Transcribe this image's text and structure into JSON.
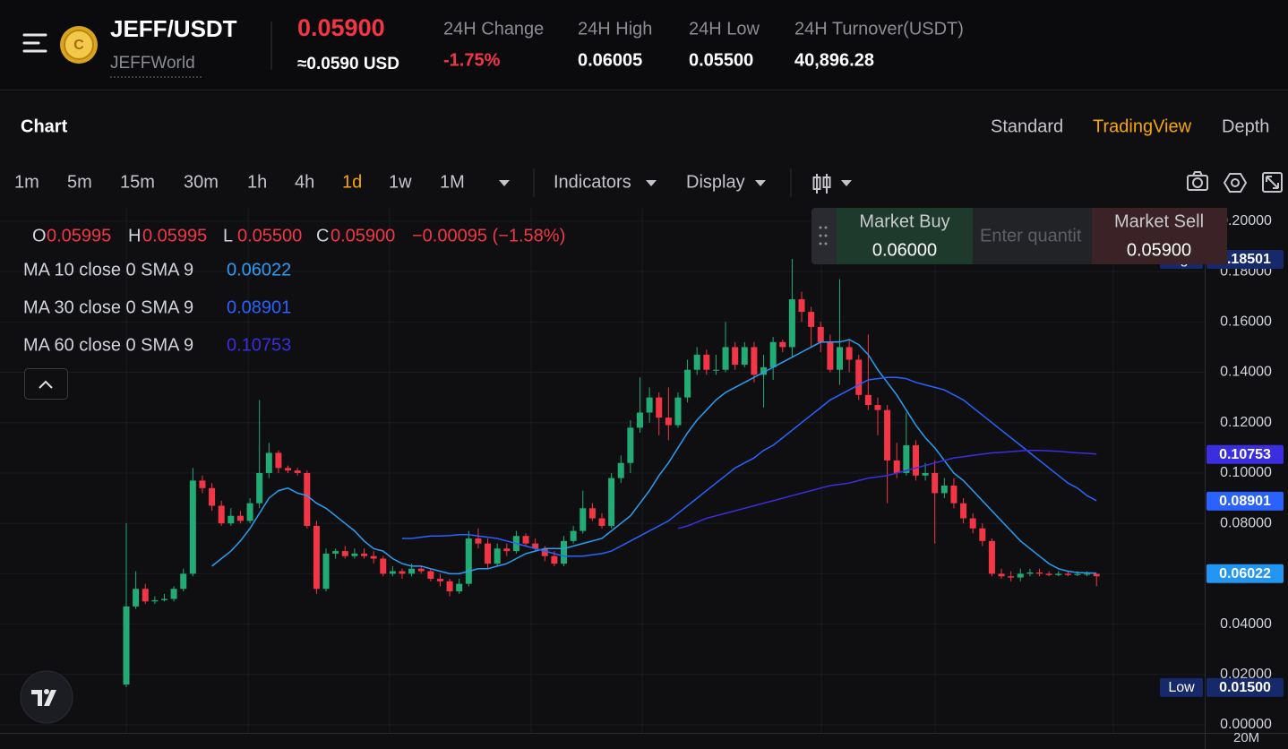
{
  "header": {
    "pair": "JEFF/USDT",
    "project": "JEFFWorld",
    "price": "0.05900",
    "price_usd": "≈0.0590 USD",
    "stats": [
      {
        "label": "24H Change",
        "value": "-1.75%",
        "color": "#f23645"
      },
      {
        "label": "24H High",
        "value": "0.06005"
      },
      {
        "label": "24H Low",
        "value": "0.05500"
      },
      {
        "label": "24H Turnover(USDT)",
        "value": "40,896.28"
      }
    ]
  },
  "tabs": {
    "title": "Chart",
    "views": [
      "Standard",
      "TradingView",
      "Depth"
    ],
    "active_view": "TradingView"
  },
  "toolbar": {
    "intervals": [
      "1m",
      "5m",
      "15m",
      "30m",
      "1h",
      "4h",
      "1d",
      "1w",
      "1M"
    ],
    "active_interval": "1d",
    "menus": [
      "Indicators",
      "Display"
    ]
  },
  "trade_panel": {
    "buy_label": "Market Buy",
    "buy_price": "0.06000",
    "placeholder": "Enter quantit",
    "sell_label": "Market Sell",
    "sell_price": "0.05900"
  },
  "chart_data": {
    "type": "candlestick",
    "up_color": "#22ab74",
    "down_color": "#f23645",
    "ylim": [
      -0.0032,
      0.2053
    ],
    "yticks": [
      {
        "value": 0,
        "label": "0.00000"
      },
      {
        "value": 0.02,
        "label": "0.02000"
      },
      {
        "value": 0.04,
        "label": "0.04000"
      },
      {
        "value": 0.06,
        "label": "0.06000"
      },
      {
        "value": 0.08,
        "label": "0.08000"
      },
      {
        "value": 0.1,
        "label": "0.10000"
      },
      {
        "value": 0.12,
        "label": "0.12000"
      },
      {
        "value": 0.14,
        "label": "0.14000"
      },
      {
        "value": 0.16,
        "label": "0.16000"
      },
      {
        "value": 0.18,
        "label": "0.18000"
      },
      {
        "value": 0.2,
        "label": "0.20000"
      }
    ],
    "grid": true,
    "legend_ohlc": [
      {
        "key": "O",
        "value": "0.05995"
      },
      {
        "key": "H",
        "value": "0.05995"
      },
      {
        "key": "L",
        "value": "0.05500"
      },
      {
        "key": "C",
        "value": "0.05900"
      }
    ],
    "legend_change": "−0.00095 (−1.58%)",
    "volume_label": "20M",
    "ohlc": [
      [
        0.016,
        0.08,
        0.015,
        0.047
      ],
      [
        0.047,
        0.061,
        0.046,
        0.054
      ],
      [
        0.054,
        0.056,
        0.048,
        0.049
      ],
      [
        0.049,
        0.051,
        0.048,
        0.0495
      ],
      [
        0.0495,
        0.052,
        0.049,
        0.05
      ],
      [
        0.05,
        0.055,
        0.049,
        0.054
      ],
      [
        0.054,
        0.062,
        0.053,
        0.06
      ],
      [
        0.06,
        0.102,
        0.059,
        0.097
      ],
      [
        0.097,
        0.099,
        0.092,
        0.094
      ],
      [
        0.094,
        0.096,
        0.085,
        0.087
      ],
      [
        0.087,
        0.089,
        0.079,
        0.08
      ],
      [
        0.08,
        0.086,
        0.079,
        0.083
      ],
      [
        0.083,
        0.085,
        0.08,
        0.081
      ],
      [
        0.081,
        0.09,
        0.08,
        0.088
      ],
      [
        0.088,
        0.129,
        0.086,
        0.1
      ],
      [
        0.1,
        0.112,
        0.098,
        0.108
      ],
      [
        0.108,
        0.109,
        0.1,
        0.102
      ],
      [
        0.102,
        0.103,
        0.1,
        0.101
      ],
      [
        0.101,
        0.102,
        0.099,
        0.1
      ],
      [
        0.1,
        0.101,
        0.078,
        0.079
      ],
      [
        0.079,
        0.081,
        0.052,
        0.054
      ],
      [
        0.054,
        0.07,
        0.053,
        0.068
      ],
      [
        0.068,
        0.07,
        0.066,
        0.069
      ],
      [
        0.069,
        0.071,
        0.066,
        0.067
      ],
      [
        0.067,
        0.07,
        0.066,
        0.068
      ],
      [
        0.068,
        0.07,
        0.066,
        0.067
      ],
      [
        0.067,
        0.069,
        0.064,
        0.066
      ],
      [
        0.066,
        0.067,
        0.059,
        0.06
      ],
      [
        0.06,
        0.063,
        0.059,
        0.061
      ],
      [
        0.061,
        0.062,
        0.058,
        0.06
      ],
      [
        0.06,
        0.064,
        0.059,
        0.062
      ],
      [
        0.062,
        0.063,
        0.06,
        0.061
      ],
      [
        0.061,
        0.062,
        0.057,
        0.058
      ],
      [
        0.058,
        0.06,
        0.055,
        0.057
      ],
      [
        0.057,
        0.058,
        0.051,
        0.053
      ],
      [
        0.053,
        0.058,
        0.052,
        0.056
      ],
      [
        0.056,
        0.077,
        0.055,
        0.074
      ],
      [
        0.074,
        0.078,
        0.07,
        0.072
      ],
      [
        0.072,
        0.074,
        0.062,
        0.064
      ],
      [
        0.064,
        0.072,
        0.063,
        0.07
      ],
      [
        0.07,
        0.072,
        0.067,
        0.069
      ],
      [
        0.069,
        0.077,
        0.068,
        0.075
      ],
      [
        0.075,
        0.076,
        0.071,
        0.072
      ],
      [
        0.072,
        0.074,
        0.069,
        0.07
      ],
      [
        0.07,
        0.071,
        0.065,
        0.067
      ],
      [
        0.067,
        0.069,
        0.063,
        0.064
      ],
      [
        0.064,
        0.075,
        0.063,
        0.073
      ],
      [
        0.073,
        0.079,
        0.072,
        0.077
      ],
      [
        0.077,
        0.093,
        0.076,
        0.086
      ],
      [
        0.086,
        0.088,
        0.081,
        0.082
      ],
      [
        0.082,
        0.084,
        0.078,
        0.079
      ],
      [
        0.079,
        0.1,
        0.078,
        0.098
      ],
      [
        0.098,
        0.107,
        0.096,
        0.104
      ],
      [
        0.104,
        0.121,
        0.1,
        0.118
      ],
      [
        0.118,
        0.138,
        0.116,
        0.124
      ],
      [
        0.124,
        0.134,
        0.12,
        0.13
      ],
      [
        0.13,
        0.132,
        0.115,
        0.122
      ],
      [
        0.122,
        0.134,
        0.113,
        0.119
      ],
      [
        0.119,
        0.132,
        0.118,
        0.13
      ],
      [
        0.13,
        0.145,
        0.128,
        0.141
      ],
      [
        0.141,
        0.15,
        0.139,
        0.147
      ],
      [
        0.147,
        0.149,
        0.139,
        0.141
      ],
      [
        0.141,
        0.147,
        0.139,
        0.141
      ],
      [
        0.141,
        0.16,
        0.14,
        0.15
      ],
      [
        0.15,
        0.152,
        0.141,
        0.143
      ],
      [
        0.143,
        0.152,
        0.142,
        0.15
      ],
      [
        0.15,
        0.152,
        0.136,
        0.139
      ],
      [
        0.139,
        0.147,
        0.126,
        0.142
      ],
      [
        0.142,
        0.154,
        0.137,
        0.152
      ],
      [
        0.152,
        0.153,
        0.148,
        0.15
      ],
      [
        0.15,
        0.18501,
        0.146,
        0.169
      ],
      [
        0.169,
        0.172,
        0.16,
        0.164
      ],
      [
        0.164,
        0.166,
        0.15,
        0.158
      ],
      [
        0.158,
        0.16,
        0.148,
        0.152
      ],
      [
        0.152,
        0.155,
        0.14,
        0.141
      ],
      [
        0.141,
        0.177,
        0.135,
        0.15
      ],
      [
        0.15,
        0.153,
        0.14,
        0.145
      ],
      [
        0.145,
        0.147,
        0.129,
        0.131
      ],
      [
        0.131,
        0.155,
        0.125,
        0.127
      ],
      [
        0.127,
        0.13,
        0.115,
        0.125
      ],
      [
        0.125,
        0.127,
        0.088,
        0.105
      ],
      [
        0.105,
        0.112,
        0.098,
        0.1
      ],
      [
        0.1,
        0.124,
        0.099,
        0.111
      ],
      [
        0.111,
        0.113,
        0.097,
        0.099
      ],
      [
        0.099,
        0.104,
        0.097,
        0.1
      ],
      [
        0.1,
        0.105,
        0.072,
        0.092
      ],
      [
        0.092,
        0.098,
        0.09,
        0.095
      ],
      [
        0.095,
        0.098,
        0.086,
        0.088
      ],
      [
        0.088,
        0.09,
        0.08,
        0.082
      ],
      [
        0.082,
        0.084,
        0.076,
        0.078
      ],
      [
        0.078,
        0.08,
        0.071,
        0.073
      ],
      [
        0.073,
        0.074,
        0.059,
        0.06
      ],
      [
        0.06,
        0.062,
        0.058,
        0.059
      ],
      [
        0.059,
        0.061,
        0.057,
        0.0585
      ],
      [
        0.0585,
        0.062,
        0.057,
        0.06
      ],
      [
        0.06,
        0.062,
        0.059,
        0.0605
      ],
      [
        0.0605,
        0.062,
        0.059,
        0.06
      ],
      [
        0.06,
        0.061,
        0.059,
        0.0595
      ],
      [
        0.0595,
        0.061,
        0.059,
        0.06
      ],
      [
        0.06,
        0.061,
        0.059,
        0.0595
      ],
      [
        0.0595,
        0.061,
        0.059,
        0.0599
      ],
      [
        0.0599,
        0.061,
        0.059,
        0.05995
      ],
      [
        0.05995,
        0.05995,
        0.055,
        0.059
      ]
    ],
    "series": [
      {
        "name": "MA 10 close 0 SMA 9",
        "last_label": "0.06022",
        "color": "#2a9df4",
        "values": [
          null,
          null,
          null,
          null,
          null,
          null,
          null,
          null,
          null,
          0.063,
          0.066,
          0.069,
          0.073,
          0.078,
          0.084,
          0.09,
          0.093,
          0.094,
          0.092,
          0.091,
          0.088,
          0.086,
          0.083,
          0.08,
          0.077,
          0.073,
          0.07,
          0.069,
          0.066,
          0.064,
          0.063,
          0.063,
          0.062,
          0.061,
          0.06,
          0.06,
          0.061,
          0.062,
          0.062,
          0.063,
          0.064,
          0.066,
          0.068,
          0.069,
          0.07,
          0.07,
          0.07,
          0.071,
          0.072,
          0.073,
          0.074,
          0.077,
          0.08,
          0.083,
          0.088,
          0.093,
          0.099,
          0.104,
          0.11,
          0.116,
          0.121,
          0.125,
          0.129,
          0.132,
          0.134,
          0.136,
          0.138,
          0.14,
          0.142,
          0.144,
          0.146,
          0.148,
          0.15,
          0.152,
          0.152,
          0.152,
          0.153,
          0.151,
          0.147,
          0.141,
          0.136,
          0.131,
          0.125,
          0.119,
          0.114,
          0.11,
          0.105,
          0.1,
          0.097,
          0.093,
          0.089,
          0.085,
          0.081,
          0.077,
          0.073,
          0.07,
          0.067,
          0.064,
          0.062,
          0.061,
          0.0605,
          0.0603,
          0.06022
        ]
      },
      {
        "name": "MA 30 close 0 SMA 9",
        "last_label": "0.08901",
        "color": "#2962ff",
        "values": [
          null,
          null,
          null,
          null,
          null,
          null,
          null,
          null,
          null,
          null,
          null,
          null,
          null,
          null,
          null,
          null,
          null,
          null,
          null,
          null,
          null,
          null,
          null,
          null,
          null,
          null,
          null,
          null,
          null,
          0.074,
          0.074,
          0.0745,
          0.075,
          0.075,
          0.0752,
          0.0755,
          0.0755,
          0.075,
          0.0745,
          0.074,
          0.073,
          0.072,
          0.071,
          0.07,
          0.069,
          0.068,
          0.067,
          0.067,
          0.067,
          0.0675,
          0.068,
          0.069,
          0.071,
          0.073,
          0.075,
          0.077,
          0.079,
          0.081,
          0.084,
          0.087,
          0.09,
          0.093,
          0.096,
          0.099,
          0.102,
          0.104,
          0.106,
          0.109,
          0.111,
          0.114,
          0.117,
          0.12,
          0.123,
          0.126,
          0.129,
          0.131,
          0.133,
          0.135,
          0.137,
          0.1375,
          0.138,
          0.138,
          0.1375,
          0.136,
          0.135,
          0.134,
          0.133,
          0.131,
          0.129,
          0.126,
          0.123,
          0.12,
          0.117,
          0.114,
          0.111,
          0.108,
          0.105,
          0.102,
          0.099,
          0.096,
          0.094,
          0.091,
          0.08901
        ]
      },
      {
        "name": "MA 60 close 0 SMA 9",
        "last_label": "0.10753",
        "color": "#3a2ee0",
        "values": [
          null,
          null,
          null,
          null,
          null,
          null,
          null,
          null,
          null,
          null,
          null,
          null,
          null,
          null,
          null,
          null,
          null,
          null,
          null,
          null,
          null,
          null,
          null,
          null,
          null,
          null,
          null,
          null,
          null,
          null,
          null,
          null,
          null,
          null,
          null,
          null,
          null,
          null,
          null,
          null,
          null,
          null,
          null,
          null,
          null,
          null,
          null,
          null,
          null,
          null,
          null,
          null,
          null,
          null,
          null,
          null,
          null,
          null,
          0.078,
          0.079,
          0.0805,
          0.082,
          0.083,
          0.084,
          0.085,
          0.086,
          0.087,
          0.088,
          0.089,
          0.09,
          0.091,
          0.092,
          0.093,
          0.094,
          0.095,
          0.0955,
          0.096,
          0.097,
          0.098,
          0.0985,
          0.099,
          0.1,
          0.101,
          0.102,
          0.103,
          0.104,
          0.105,
          0.106,
          0.1065,
          0.107,
          0.1075,
          0.108,
          0.1082,
          0.1085,
          0.1088,
          0.109,
          0.109,
          0.1088,
          0.1086,
          0.1083,
          0.108,
          0.1078,
          0.10753
        ]
      }
    ],
    "price_labels": [
      {
        "tag": "High",
        "value": 0.18501,
        "label": "0.18501",
        "color": "#15296b"
      },
      {
        "value": 0.10753,
        "label": "0.10753",
        "color": "#3a2ee0"
      },
      {
        "value": 0.08901,
        "label": "0.08901",
        "color": "#2962ff"
      },
      {
        "value": 0.06022,
        "label": "0.06022",
        "color": "#2196f3"
      },
      {
        "tag": "Low",
        "value": 0.015,
        "label": "0.01500",
        "color": "#15296b"
      }
    ]
  }
}
